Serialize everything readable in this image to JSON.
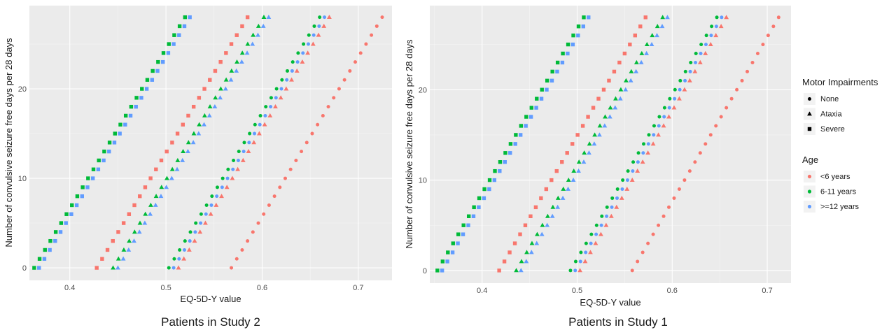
{
  "chart_data": [
    {
      "type": "scatter",
      "caption": "Patients in Study 2",
      "xlabel": "EQ-5D-Y value",
      "ylabel": "Number of convulsive seizure free days per 28 days",
      "xlim": [
        0.358,
        0.735
      ],
      "ylim": [
        -1.4,
        29.3
      ],
      "x_ticks": [
        0.4,
        0.5,
        0.6,
        0.7
      ],
      "x_tick_labels": [
        "0.4",
        "0.5",
        "0.6",
        "0.7"
      ],
      "y_ticks": [
        0,
        10,
        20
      ],
      "y_tick_labels": [
        "0",
        "10",
        "20"
      ],
      "grid": true,
      "series": [
        {
          "motor": "Severe",
          "age": "6-11 years",
          "x0": 0.363,
          "slope": 0.0056
        },
        {
          "motor": "Severe",
          "age": ">=12 years",
          "x0": 0.368,
          "slope": 0.0056
        },
        {
          "motor": "Severe",
          "age": "<6 years",
          "x0": 0.428,
          "slope": 0.0056
        },
        {
          "motor": "Ataxia",
          "age": "6-11 years",
          "x0": 0.445,
          "slope": 0.0056
        },
        {
          "motor": "Ataxia",
          "age": ">=12 years",
          "x0": 0.45,
          "slope": 0.0056
        },
        {
          "motor": "None",
          "age": "6-11 years",
          "x0": 0.503,
          "slope": 0.0056
        },
        {
          "motor": "None",
          "age": ">=12 years",
          "x0": 0.508,
          "slope": 0.0056
        },
        {
          "motor": "Ataxia",
          "age": "<6 years",
          "x0": 0.513,
          "slope": 0.0056
        },
        {
          "motor": "None",
          "age": "<6 years",
          "x0": 0.568,
          "slope": 0.0056
        }
      ]
    },
    {
      "type": "scatter",
      "caption": "Patients in Study 1",
      "xlabel": "EQ-5D-Y value",
      "ylabel": "Number of convulsive seizure free days per 28 days",
      "xlim": [
        0.345,
        0.725
      ],
      "ylim": [
        -1.4,
        29.3
      ],
      "x_ticks": [
        0.4,
        0.5,
        0.6,
        0.7
      ],
      "x_tick_labels": [
        "0.4",
        "0.5",
        "0.6",
        "0.7"
      ],
      "y_ticks": [
        0,
        10,
        20
      ],
      "y_tick_labels": [
        "0",
        "10",
        "20"
      ],
      "grid": true,
      "series": [
        {
          "motor": "Severe",
          "age": "6-11 years",
          "x0": 0.353,
          "slope": 0.0055
        },
        {
          "motor": "Severe",
          "age": ">=12 years",
          "x0": 0.358,
          "slope": 0.0055
        },
        {
          "motor": "Severe",
          "age": "<6 years",
          "x0": 0.418,
          "slope": 0.0055
        },
        {
          "motor": "Ataxia",
          "age": "6-11 years",
          "x0": 0.436,
          "slope": 0.0055
        },
        {
          "motor": "Ataxia",
          "age": ">=12 years",
          "x0": 0.441,
          "slope": 0.0055
        },
        {
          "motor": "None",
          "age": "6-11 years",
          "x0": 0.493,
          "slope": 0.0055
        },
        {
          "motor": "None",
          "age": ">=12 years",
          "x0": 0.498,
          "slope": 0.0055
        },
        {
          "motor": "Ataxia",
          "age": "<6 years",
          "x0": 0.503,
          "slope": 0.0055
        },
        {
          "motor": "None",
          "age": "<6 years",
          "x0": 0.558,
          "slope": 0.0055
        }
      ]
    }
  ],
  "y_values": [
    0,
    1,
    2,
    3,
    4,
    5,
    6,
    7,
    8,
    9,
    10,
    11,
    12,
    13,
    14,
    15,
    16,
    17,
    18,
    19,
    20,
    21,
    22,
    23,
    24,
    25,
    26,
    27,
    28
  ],
  "legend": {
    "shape_title": "Motor Impairments",
    "shapes": [
      {
        "label": "None",
        "shape": "circle"
      },
      {
        "label": "Ataxia",
        "shape": "triangle"
      },
      {
        "label": "Severe",
        "shape": "square"
      }
    ],
    "color_title": "Age",
    "colors": [
      {
        "label": "<6 years",
        "key": "<6 years"
      },
      {
        "label": "6-11 years",
        "key": "6-11 years"
      },
      {
        "label": ">=12 years",
        "key": ">=12 years"
      }
    ],
    "placement": "right"
  },
  "colors": {
    "<6 years": "#F8766D",
    "6-11 years": "#00BA38",
    ">=12 years": "#619CFF",
    "panel_bg": "#EBEBEB",
    "grid": "#FFFFFF"
  }
}
